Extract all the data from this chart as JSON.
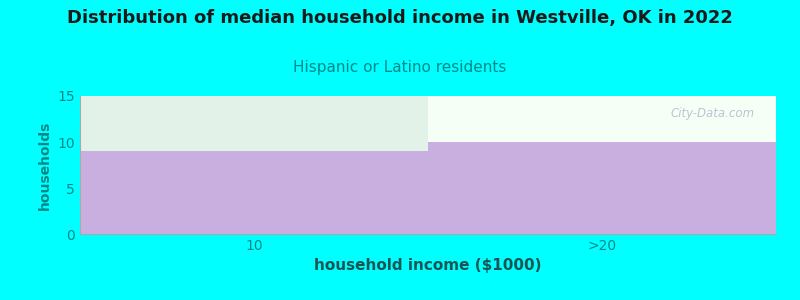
{
  "title": "Distribution of median household income in Westville, OK in 2022",
  "subtitle": "Hispanic or Latino residents",
  "xlabel": "household income ($1000)",
  "ylabel": "households",
  "categories": [
    "10",
    ">20"
  ],
  "values": [
    9,
    10
  ],
  "bar_color": "#c9aee0",
  "ylim": [
    0,
    15
  ],
  "yticks": [
    0,
    5,
    10,
    15
  ],
  "background_color": "#00ffff",
  "plot_bg_color": "#f5fff5",
  "title_fontsize": 13,
  "title_color": "#1a1a1a",
  "subtitle_color": "#008888",
  "subtitle_fontsize": 11,
  "ylabel_color": "#008888",
  "xlabel_color": "#1a5555",
  "watermark": "City-Data.com",
  "tick_color": "#008888",
  "left_bar_top_color": "#e0f0e8",
  "right_bar_top_color": "#f8f8f8"
}
